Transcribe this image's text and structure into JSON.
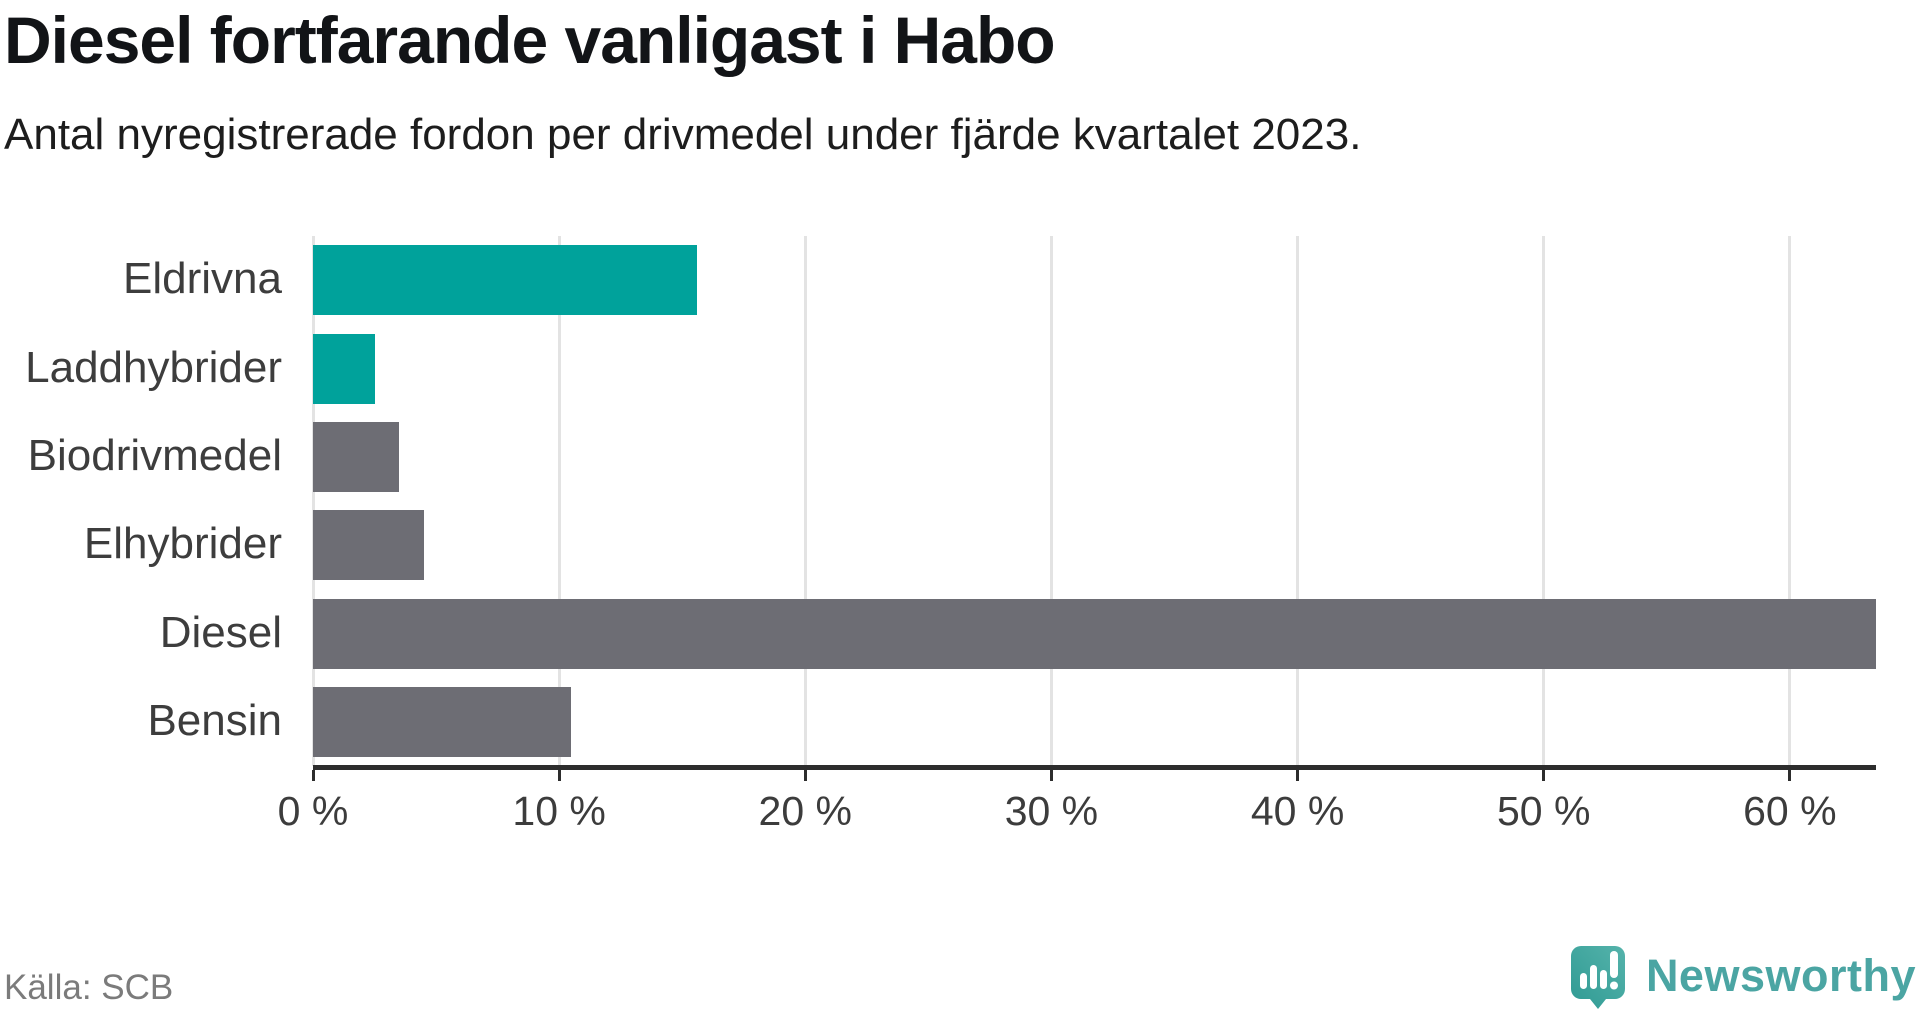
{
  "header": {
    "title": "Diesel fortfarande vanligast i Habo",
    "subtitle": "Antal nyregistrerade fordon per drivmedel under fjärde kvartalet 2023."
  },
  "footer": {
    "source": "Källa: SCB",
    "brand": "Newsworthy"
  },
  "colors": {
    "teal": "#00a29b",
    "gray": "#6d6d74",
    "axis": "#2d2d2d",
    "grid": "#e3e3e3",
    "tick_label": "#3c3c3c",
    "category_label": "#3d3d3d",
    "title": "#121417",
    "source": "#7b7b7b",
    "brand_text": "#4ba5a3",
    "brand_icon": "#3ea69f"
  },
  "chart_data": {
    "type": "bar",
    "orientation": "horizontal",
    "title": "Diesel fortfarande vanligast i Habo",
    "subtitle": "Antal nyregistrerade fordon per drivmedel under fjärde kvartalet 2023.",
    "source": "Källa: SCB",
    "categories": [
      "Eldrivna",
      "Laddhybrider",
      "Biodrivmedel",
      "Elhybrider",
      "Diesel",
      "Bensin"
    ],
    "values": [
      15.6,
      2.5,
      3.5,
      4.5,
      63.5,
      10.5
    ],
    "bar_colors": [
      "#00a29b",
      "#00a29b",
      "#6d6d74",
      "#6d6d74",
      "#6d6d74",
      "#6d6d74"
    ],
    "unit": "%",
    "xlabel": "",
    "ylabel": "",
    "xlim": [
      0,
      63.5
    ],
    "xticks": [
      0,
      10,
      20,
      30,
      40,
      50,
      60
    ],
    "xtick_labels": [
      "0 %",
      "10 %",
      "20 %",
      "30 %",
      "40 %",
      "50 %",
      "60 %"
    ],
    "grid": "vertical",
    "legend": "none"
  }
}
